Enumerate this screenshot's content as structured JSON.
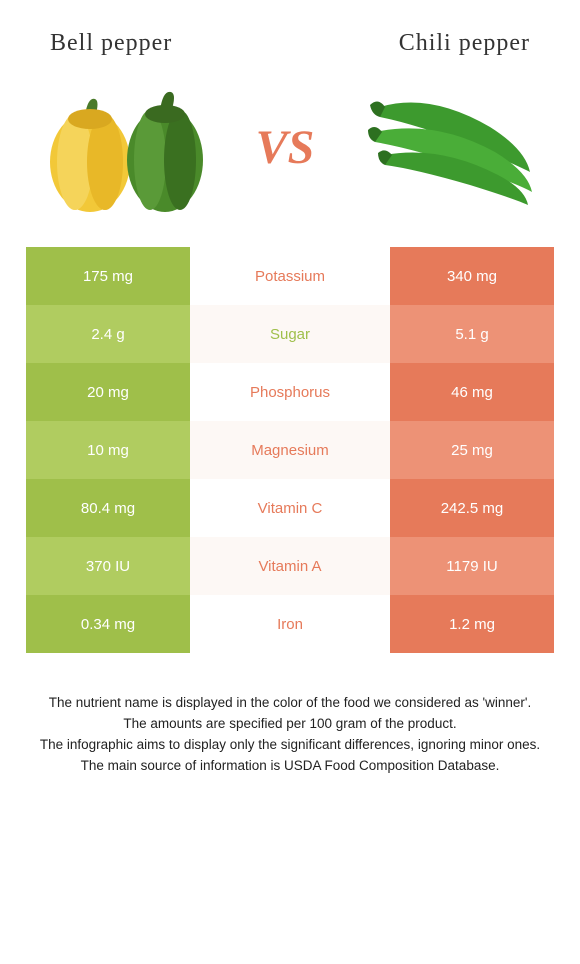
{
  "header": {
    "left_title": "Bell pepper",
    "right_title": "Chili pepper"
  },
  "vs": "VS",
  "colors": {
    "left_odd": "#9fbf4a",
    "left_even": "#b0cc60",
    "right_odd": "#e67a5a",
    "right_even": "#ed9276",
    "nutrient_winner_left": "#9fbf4a",
    "nutrient_winner_right": "#e67a5a",
    "vs": "#e67a5a",
    "yellow_pepper": "#f2c838",
    "yellow_pepper_dark": "#d9a820",
    "green_pepper": "#4a8a2a",
    "green_pepper_dark": "#3a6a20",
    "chili": "#3d9a2e",
    "chili_dark": "#2d7020"
  },
  "rows": [
    {
      "nutrient": "Potassium",
      "left": "175 mg",
      "right": "340 mg",
      "winner": "right"
    },
    {
      "nutrient": "Sugar",
      "left": "2.4 g",
      "right": "5.1 g",
      "winner": "left"
    },
    {
      "nutrient": "Phosphorus",
      "left": "20 mg",
      "right": "46 mg",
      "winner": "right"
    },
    {
      "nutrient": "Magnesium",
      "left": "10 mg",
      "right": "25 mg",
      "winner": "right"
    },
    {
      "nutrient": "Vitamin C",
      "left": "80.4 mg",
      "right": "242.5 mg",
      "winner": "right"
    },
    {
      "nutrient": "Vitamin A",
      "left": "370 IU",
      "right": "1179 IU",
      "winner": "right"
    },
    {
      "nutrient": "Iron",
      "left": "0.34 mg",
      "right": "1.2 mg",
      "winner": "right"
    }
  ],
  "footer": {
    "line1": "The nutrient name is displayed in the color of the food we considered as 'winner'.",
    "line2": "The amounts are specified per 100 gram of the product.",
    "line3": "The infographic aims to display only the significant differences, ignoring minor ones.",
    "line4": "The main source of information is USDA Food Composition Database."
  }
}
